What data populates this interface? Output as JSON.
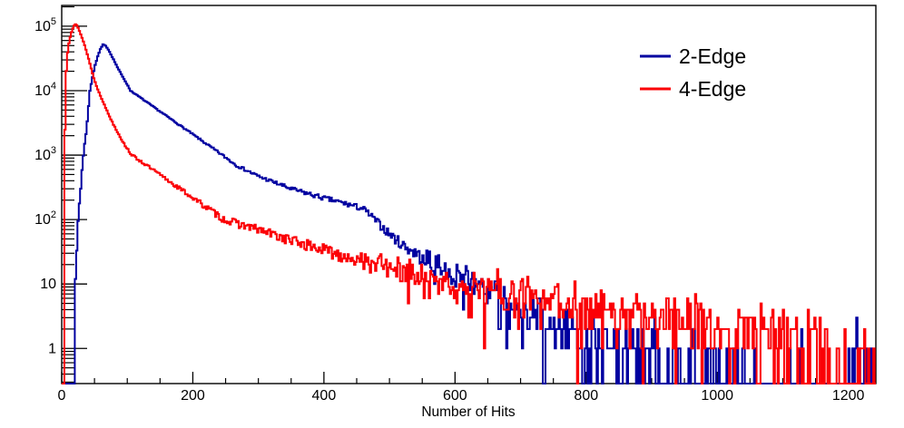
{
  "chart_data": {
    "type": "line",
    "subtype": "histogram-step",
    "title": "",
    "xlabel": "Number of Hits",
    "ylabel": "",
    "x_range": [
      0,
      1242
    ],
    "y_range": [
      0.285,
      210000
    ],
    "y_scale": "log",
    "grid": false,
    "legend_position": "top-right",
    "x_major_ticks": [
      0,
      200,
      400,
      600,
      800,
      1000,
      1200
    ],
    "x_minor_tick_step": 50,
    "y_major_ticks": [
      1,
      10,
      100,
      1000,
      10000,
      100000
    ],
    "y_tick_labels": [
      "1",
      "10",
      "10^2",
      "10^3",
      "10^4",
      "10^5"
    ],
    "frame_color": "#000000",
    "text_color": "#000000",
    "series": [
      {
        "name": "2-Edge",
        "color": "#0000a0",
        "seed": 7,
        "peak": {
          "x": 63,
          "y": 52000
        },
        "anchors": [
          [
            0,
            0
          ],
          [
            16,
            0
          ],
          [
            17,
            0.3
          ],
          [
            19,
            2
          ],
          [
            21,
            10
          ],
          [
            23,
            35
          ],
          [
            25,
            100
          ],
          [
            29,
            310
          ],
          [
            33,
            1000
          ],
          [
            38,
            2600
          ],
          [
            43,
            10000
          ],
          [
            50,
            23000
          ],
          [
            55,
            34000
          ],
          [
            59,
            44000
          ],
          [
            63,
            52000
          ],
          [
            67,
            50000
          ],
          [
            72,
            42000
          ],
          [
            78,
            32000
          ],
          [
            86,
            22000
          ],
          [
            97,
            14000
          ],
          [
            105,
            10000
          ],
          [
            140,
            5600
          ],
          [
            175,
            3160
          ],
          [
            210,
            1780
          ],
          [
            245,
            1000
          ],
          [
            266,
            700
          ],
          [
            300,
            470
          ],
          [
            350,
            300
          ],
          [
            400,
            215
          ],
          [
            430,
            180
          ],
          [
            460,
            148
          ],
          [
            480,
            95
          ],
          [
            500,
            60
          ],
          [
            520,
            41
          ],
          [
            543,
            29
          ],
          [
            561,
            21
          ],
          [
            589,
            15
          ],
          [
            620,
            11
          ],
          [
            650,
            8
          ],
          [
            680,
            5.5
          ],
          [
            700,
            4.2
          ],
          [
            730,
            3
          ],
          [
            760,
            2.2
          ],
          [
            800,
            1.5
          ],
          [
            840,
            1.1
          ],
          [
            880,
            0.8
          ],
          [
            920,
            0.55
          ],
          [
            960,
            0.45
          ],
          [
            1000,
            0.4
          ],
          [
            1050,
            0.32
          ],
          [
            1100,
            0.3
          ],
          [
            1140,
            0.35
          ],
          [
            1180,
            0.12
          ],
          [
            1230,
            0.25
          ],
          [
            1242,
            0.05
          ]
        ]
      },
      {
        "name": "4-Edge",
        "color": "#fb0006",
        "seed": 13,
        "peak": {
          "x": 21,
          "y": 108000
        },
        "anchors": [
          [
            0,
            0
          ],
          [
            2.5,
            0
          ],
          [
            3,
            0.3
          ],
          [
            4,
            6
          ],
          [
            5,
            2500
          ],
          [
            6,
            13000
          ],
          [
            8,
            32000
          ],
          [
            10,
            48000
          ],
          [
            12,
            62000
          ],
          [
            14,
            75000
          ],
          [
            16,
            88000
          ],
          [
            18,
            98000
          ],
          [
            20,
            106000
          ],
          [
            22,
            108000
          ],
          [
            24,
            100000
          ],
          [
            28,
            80000
          ],
          [
            32,
            62000
          ],
          [
            36,
            47000
          ],
          [
            40,
            34000
          ],
          [
            44,
            24000
          ],
          [
            48,
            17000
          ],
          [
            52,
            12500
          ],
          [
            56,
            10000
          ],
          [
            65,
            6000
          ],
          [
            75,
            3600
          ],
          [
            85,
            2300
          ],
          [
            95,
            1500
          ],
          [
            107,
            1000
          ],
          [
            120,
            810
          ],
          [
            140,
            583
          ],
          [
            160,
            420
          ],
          [
            180,
            303
          ],
          [
            200,
            218
          ],
          [
            220,
            157
          ],
          [
            248,
            100
          ],
          [
            300,
            70
          ],
          [
            350,
            48
          ],
          [
            400,
            34
          ],
          [
            450,
            25
          ],
          [
            500,
            18.5
          ],
          [
            550,
            13.8
          ],
          [
            600,
            10.4
          ],
          [
            650,
            8.2
          ],
          [
            700,
            6.6
          ],
          [
            750,
            5.5
          ],
          [
            800,
            4.6
          ],
          [
            850,
            3.9
          ],
          [
            900,
            3.3
          ],
          [
            950,
            2.8
          ],
          [
            1000,
            2.4
          ],
          [
            1050,
            2.0
          ],
          [
            1100,
            1.7
          ],
          [
            1150,
            1.1
          ],
          [
            1180,
            0.5
          ],
          [
            1242,
            0.3
          ]
        ]
      }
    ],
    "render_hints": {
      "bin_width": 2,
      "noise": "poisson",
      "note": "anchors are the smoothed backbone read off the plot; bins are resampled with Poisson/statistical noise to reproduce the jagged histogram texture; empty bins drop to the frame bottom"
    }
  }
}
